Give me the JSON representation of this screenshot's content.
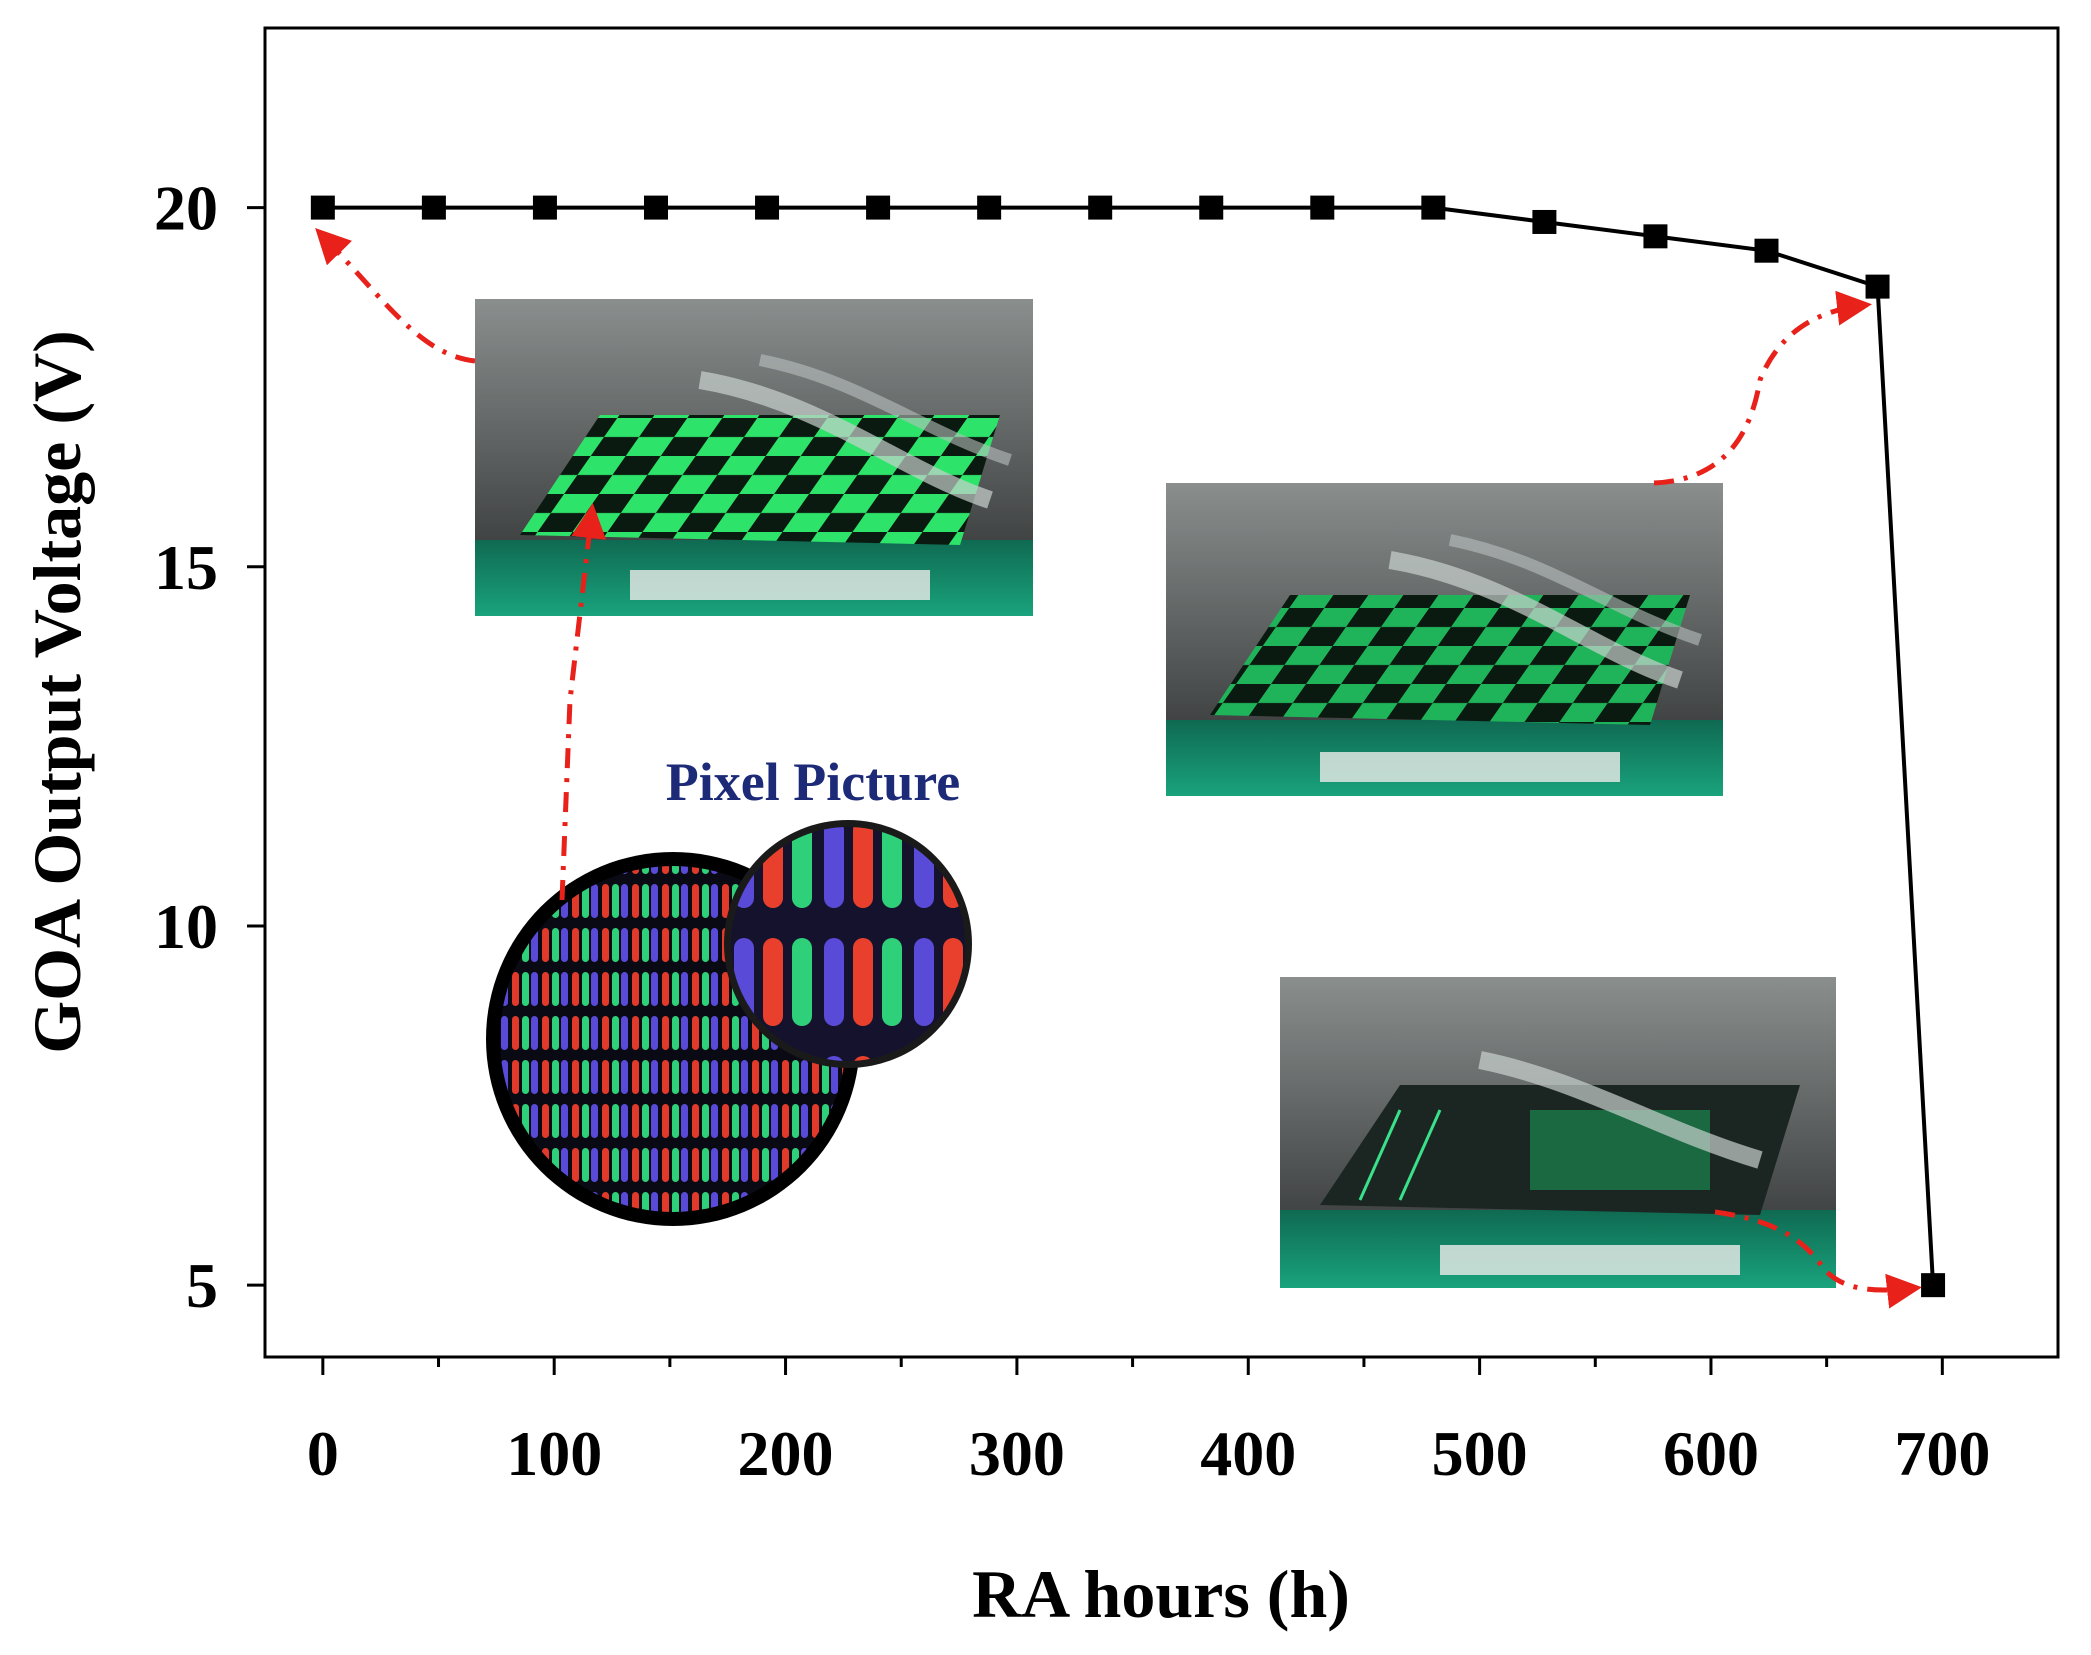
{
  "chart_data": {
    "type": "line",
    "title": "",
    "xlabel": "RA hours (h)",
    "ylabel": "GOA Output Voltage (V)",
    "xlim": [
      -25,
      750
    ],
    "ylim": [
      4,
      22.5
    ],
    "xticks": [
      0,
      100,
      200,
      300,
      400,
      500,
      600,
      700
    ],
    "xticks_minor": [
      50,
      150,
      250,
      350,
      450,
      550,
      650
    ],
    "yticks": [
      5,
      10,
      15,
      20
    ],
    "grid": false,
    "legend": "none",
    "series": [
      {
        "color": "#000000",
        "marker": "square",
        "x": [
          0,
          48,
          96,
          144,
          192,
          240,
          288,
          336,
          384,
          432,
          480,
          528,
          576,
          624,
          672,
          696
        ],
        "y": [
          20,
          20,
          20,
          20,
          20,
          20,
          20,
          20,
          20,
          20,
          20,
          19.8,
          19.6,
          19.4,
          18.9,
          5
        ]
      }
    ],
    "annotations": {
      "pixel_label": "Pixel Picture",
      "pixel_label_color": "#1c2a78",
      "arrow_color": "#e8211a",
      "insets": [
        {
          "name": "inset-photo-initial",
          "depicts": "panel-display-checkerboard-bright"
        },
        {
          "name": "inset-photo-middle",
          "depicts": "panel-display-checkerboard-dim"
        },
        {
          "name": "inset-photo-failed",
          "depicts": "panel-display-failed"
        },
        {
          "name": "inset-pixel-circle",
          "depicts": "rgb-pixel-microscope"
        }
      ]
    }
  }
}
